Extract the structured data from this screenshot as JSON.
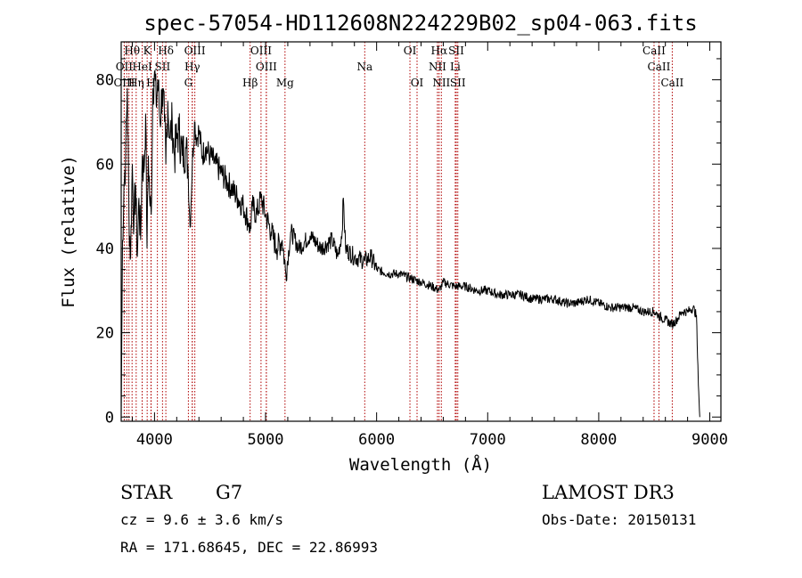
{
  "chart_data": {
    "type": "line",
    "title": "spec-57054-HD112608N224229B02_sp04-063.fits",
    "xlabel": "Wavelength (Å)",
    "ylabel": "Flux (relative)",
    "xlim": [
      3700,
      9100
    ],
    "ylim": [
      -1,
      89
    ],
    "xticks": [
      4000,
      5000,
      6000,
      7000,
      8000,
      9000
    ],
    "xtick_labels": [
      "4000",
      "5000",
      "6000",
      "7000",
      "8000",
      "9000"
    ],
    "yticks": [
      0,
      20,
      40,
      60,
      80
    ],
    "ytick_labels": [
      "0",
      "20",
      "40",
      "60",
      "80"
    ],
    "series": [
      {
        "name": "spectrum",
        "x": [
          3700,
          3712,
          3725,
          3740,
          3755,
          3770,
          3785,
          3800,
          3815,
          3830,
          3845,
          3860,
          3875,
          3890,
          3905,
          3920,
          3933,
          3945,
          3960,
          3970,
          3985,
          4000,
          4015,
          4030,
          4050,
          4070,
          4090,
          4102,
          4120,
          4140,
          4160,
          4180,
          4200,
          4220,
          4250,
          4280,
          4300,
          4320,
          4340,
          4360,
          4380,
          4400,
          4430,
          4460,
          4500,
          4550,
          4600,
          4650,
          4700,
          4750,
          4800,
          4850,
          4861,
          4880,
          4920,
          4960,
          5000,
          5050,
          5100,
          5150,
          5183,
          5230,
          5300,
          5400,
          5500,
          5600,
          5650,
          5690,
          5700,
          5720,
          5800,
          5893,
          5950,
          6000,
          6100,
          6200,
          6300,
          6400,
          6500,
          6563,
          6600,
          6700,
          6800,
          6900,
          7000,
          7100,
          7200,
          7300,
          7400,
          7500,
          7600,
          7700,
          7800,
          7900,
          8000,
          8100,
          8200,
          8300,
          8400,
          8498,
          8542,
          8600,
          8662,
          8700,
          8750,
          8800,
          8850,
          8880,
          8890,
          8900,
          8910
        ],
        "y": [
          0,
          42,
          55,
          62,
          78,
          48,
          38,
          60,
          45,
          55,
          38,
          52,
          42,
          62,
          58,
          72,
          40,
          62,
          50,
          48,
          78,
          82,
          74,
          80,
          70,
          78,
          70,
          60,
          75,
          66,
          70,
          62,
          66,
          68,
          62,
          64,
          60,
          45,
          60,
          70,
          66,
          68,
          62,
          64,
          62,
          60,
          58,
          56,
          54,
          52,
          50,
          46,
          44,
          50,
          48,
          52,
          48,
          44,
          40,
          42,
          34,
          44,
          40,
          43,
          40,
          42,
          38,
          44,
          52,
          40,
          38,
          37,
          38,
          35,
          34,
          34,
          33,
          32,
          31,
          30,
          32,
          31,
          31,
          30,
          30,
          29,
          29,
          29,
          28,
          28,
          28,
          27,
          27,
          28,
          27,
          26,
          26,
          26,
          25,
          25,
          24,
          23,
          22,
          23,
          25,
          25,
          26,
          24,
          14,
          6,
          0
        ]
      }
    ],
    "spectral_lines": [
      {
        "label": "Hθ",
        "x": 3798,
        "row": 1
      },
      {
        "label": "K",
        "x": 3934,
        "row": 1
      },
      {
        "label": "Hδ",
        "x": 4102,
        "row": 1
      },
      {
        "label": "OIII",
        "x": 4363,
        "row": 1
      },
      {
        "label": "OIII",
        "x": 4959,
        "row": 1
      },
      {
        "label": "OI",
        "x": 6300,
        "row": 1
      },
      {
        "label": "Hα",
        "x": 6563,
        "row": 1
      },
      {
        "label": "SII",
        "x": 6717,
        "row": 1
      },
      {
        "label": "CaII",
        "x": 8498,
        "row": 1
      },
      {
        "label": "OII",
        "x": 3727,
        "row": 2
      },
      {
        "label": "HeI",
        "x": 3889,
        "row": 2
      },
      {
        "label": "SII",
        "x": 4072,
        "row": 2
      },
      {
        "label": "Hγ",
        "x": 4340,
        "row": 2
      },
      {
        "label": "OIII",
        "x": 5007,
        "row": 2
      },
      {
        "label": "Na",
        "x": 5893,
        "row": 2
      },
      {
        "label": "NII",
        "x": 6548,
        "row": 2
      },
      {
        "label": "Li",
        "x": 6708,
        "row": 2
      },
      {
        "label": "CaII",
        "x": 8542,
        "row": 2
      },
      {
        "label": "OIII",
        "x": 3728,
        "row": 3
      },
      {
        "label": "Hη",
        "x": 3835,
        "row": 3
      },
      {
        "label": "H",
        "x": 3968,
        "row": 3
      },
      {
        "label": "G",
        "x": 4305,
        "row": 3
      },
      {
        "label": "Hβ",
        "x": 4861,
        "row": 3
      },
      {
        "label": "Mg",
        "x": 5175,
        "row": 3
      },
      {
        "label": "OI",
        "x": 6364,
        "row": 3
      },
      {
        "label": "NII",
        "x": 6583,
        "row": 3
      },
      {
        "label": "SII",
        "x": 6731,
        "row": 3
      },
      {
        "label": "CaII",
        "x": 8662,
        "row": 3
      }
    ],
    "extra_line_markers_x": [
      3750,
      3770,
      3889,
      3970,
      4026,
      4340,
      5007,
      6548,
      6717,
      8498
    ]
  },
  "info": {
    "object_type": "STAR",
    "subclass": "G7",
    "cz": "cz = 9.6 ± 3.6 km/s",
    "coords": "RA = 171.68645, DEC =  22.86993",
    "survey": "LAMOST DR3",
    "obs_date": "Obs-Date: 20150131"
  },
  "colors": {
    "spectrum": "#000000",
    "line_markers": "#b00000",
    "axes": "#000000",
    "background": "#ffffff"
  }
}
